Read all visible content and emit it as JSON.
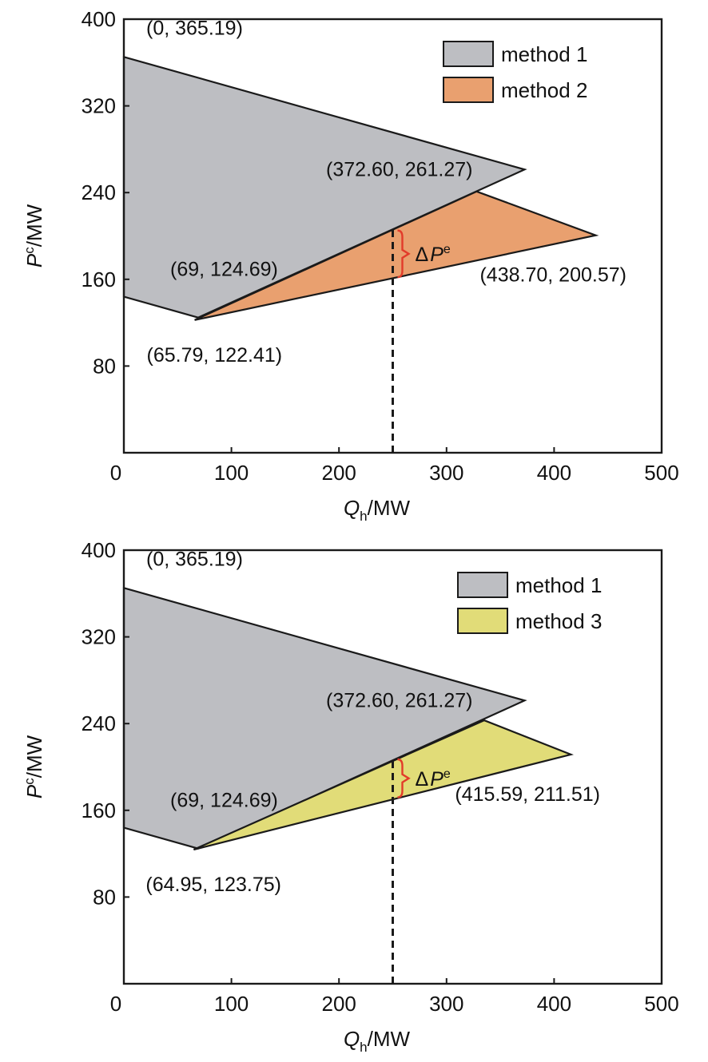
{
  "chart_data": [
    {
      "type": "area",
      "title": "",
      "xlabel_main": "Q",
      "xlabel_sub": "h",
      "xlabel_unit": "/MW",
      "ylabel_main": "P",
      "ylabel_sup": "c",
      "ylabel_unit": "/MW",
      "xlim": [
        0,
        500
      ],
      "ylim": [
        0,
        400
      ],
      "xticks": [
        0,
        100,
        200,
        300,
        400,
        500
      ],
      "yticks": [
        80,
        160,
        240,
        320,
        400
      ],
      "series": [
        {
          "name": "method 1",
          "color": "#bdbec2",
          "points": [
            [
              0,
              365.19
            ],
            [
              372.6,
              261.27
            ],
            [
              69,
              124.69
            ],
            [
              0,
              144
            ]
          ]
        },
        {
          "name": "method 2",
          "color": "#e9a06f",
          "points": [
            [
              65.79,
              122.41
            ],
            [
              438.7,
              200.57
            ],
            [
              328,
              241
            ]
          ]
        }
      ],
      "annotations": [
        {
          "text": "(0, 365.19)",
          "x": 0,
          "y": 365.19
        },
        {
          "text": "(372.60, 261.27)",
          "x": 372.6,
          "y": 261.27
        },
        {
          "text": "(69, 124.69)",
          "x": 69,
          "y": 124.69
        },
        {
          "text": "(65.79, 122.41)",
          "x": 65.79,
          "y": 122.41
        },
        {
          "text": "(438.70, 200.57)",
          "x": 438.7,
          "y": 200.57
        }
      ],
      "vline_x": 250,
      "delta": {
        "label_prefix": "Δ",
        "label_main": "P",
        "label_sup": "e",
        "x": 250,
        "y_low": 162,
        "y_high": 205
      }
    },
    {
      "type": "area",
      "title": "",
      "xlabel_main": "Q",
      "xlabel_sub": "h",
      "xlabel_unit": "/MW",
      "ylabel_main": "P",
      "ylabel_sup": "c",
      "ylabel_unit": "/MW",
      "xlim": [
        0,
        500
      ],
      "ylim": [
        0,
        400
      ],
      "xticks": [
        0,
        100,
        200,
        300,
        400,
        500
      ],
      "yticks": [
        80,
        160,
        240,
        320,
        400
      ],
      "series": [
        {
          "name": "method 1",
          "color": "#bdbec2",
          "points": [
            [
              0,
              365.19
            ],
            [
              372.6,
              261.27
            ],
            [
              69,
              124.69
            ],
            [
              0,
              144
            ]
          ]
        },
        {
          "name": "method 3",
          "color": "#e1dc78",
          "points": [
            [
              64.95,
              123.75
            ],
            [
              415.59,
              211.51
            ],
            [
              335,
              243
            ]
          ]
        }
      ],
      "annotations": [
        {
          "text": "(0, 365.19)",
          "x": 0,
          "y": 365.19
        },
        {
          "text": "(372.60, 261.27)",
          "x": 372.6,
          "y": 261.27
        },
        {
          "text": "(69, 124.69)",
          "x": 69,
          "y": 124.69
        },
        {
          "text": "(64.95, 123.75)",
          "x": 64.95,
          "y": 123.75
        },
        {
          "text": "(415.59, 211.51)",
          "x": 415.59,
          "y": 211.51
        }
      ],
      "vline_x": 250,
      "delta": {
        "label_prefix": "Δ",
        "label_main": "P",
        "label_sup": "e",
        "x": 250,
        "y_low": 172,
        "y_high": 207
      }
    }
  ]
}
